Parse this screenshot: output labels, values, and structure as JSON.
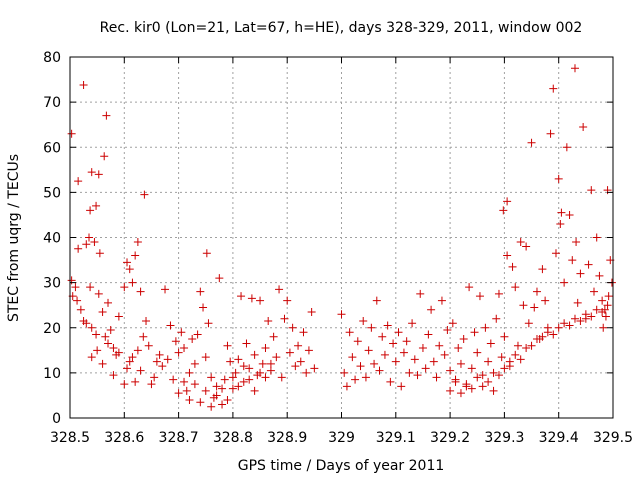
{
  "chart_data": {
    "type": "scatter",
    "title": "Rec. kir0 (Lon=21, Lat=67, h=HE), days 328-329, 2011, window 002",
    "xlabel": "GPS time / Days of year 2011",
    "ylabel": "STEC from uqrg / TECUs",
    "xlim": [
      328.5,
      329.5
    ],
    "ylim": [
      0,
      80
    ],
    "grid": true,
    "marker": "plus",
    "color": "#cc0000",
    "x_ticks": [
      {
        "value": 328.5,
        "label": "328.5"
      },
      {
        "value": 328.6,
        "label": "328.6"
      },
      {
        "value": 328.7,
        "label": "328.7"
      },
      {
        "value": 328.8,
        "label": "328.8"
      },
      {
        "value": 328.9,
        "label": "328.9"
      },
      {
        "value": 329.0,
        "label": "329"
      },
      {
        "value": 329.1,
        "label": "329.1"
      },
      {
        "value": 329.2,
        "label": "329.2"
      },
      {
        "value": 329.3,
        "label": "329.3"
      },
      {
        "value": 329.4,
        "label": "329.4"
      },
      {
        "value": 329.5,
        "label": "329.5"
      }
    ],
    "y_ticks": [
      {
        "value": 0,
        "label": "0"
      },
      {
        "value": 10,
        "label": "10"
      },
      {
        "value": 20,
        "label": "20"
      },
      {
        "value": 30,
        "label": "30"
      },
      {
        "value": 40,
        "label": "40"
      },
      {
        "value": 50,
        "label": "50"
      },
      {
        "value": 60,
        "label": "60"
      },
      {
        "value": 70,
        "label": "70"
      },
      {
        "value": 80,
        "label": "80"
      }
    ],
    "points": [
      [
        328.503,
        63
      ],
      [
        328.515,
        52.5
      ],
      [
        328.525,
        73.8
      ],
      [
        328.537,
        46
      ],
      [
        328.54,
        54.5
      ],
      [
        328.548,
        47
      ],
      [
        328.553,
        54
      ],
      [
        328.567,
        67
      ],
      [
        328.563,
        58
      ],
      [
        328.637,
        49.5
      ],
      [
        328.53,
        38.5
      ],
      [
        328.535,
        40
      ],
      [
        328.545,
        39
      ],
      [
        328.555,
        36.5
      ],
      [
        328.503,
        30.5
      ],
      [
        328.51,
        29
      ],
      [
        328.515,
        37.5
      ],
      [
        328.505,
        27
      ],
      [
        328.513,
        26
      ],
      [
        328.52,
        24
      ],
      [
        328.525,
        21.5
      ],
      [
        328.53,
        21
      ],
      [
        328.537,
        29
      ],
      [
        328.54,
        20
      ],
      [
        328.548,
        18.5
      ],
      [
        328.553,
        27.5
      ],
      [
        328.56,
        23.5
      ],
      [
        328.565,
        18
      ],
      [
        328.57,
        25.5
      ],
      [
        328.575,
        19.5
      ],
      [
        328.58,
        15.5
      ],
      [
        328.585,
        14
      ],
      [
        328.59,
        22.5
      ],
      [
        328.6,
        29
      ],
      [
        328.605,
        34.5
      ],
      [
        328.61,
        33
      ],
      [
        328.615,
        30
      ],
      [
        328.62,
        36
      ],
      [
        328.625,
        39
      ],
      [
        328.63,
        28
      ],
      [
        328.64,
        21.5
      ],
      [
        328.54,
        13.5
      ],
      [
        328.55,
        15
      ],
      [
        328.56,
        12
      ],
      [
        328.57,
        16.5
      ],
      [
        328.58,
        9.5
      ],
      [
        328.59,
        14.5
      ],
      [
        328.6,
        7.5
      ],
      [
        328.605,
        11
      ],
      [
        328.61,
        12.5
      ],
      [
        328.615,
        13.5
      ],
      [
        328.62,
        8
      ],
      [
        328.625,
        15
      ],
      [
        328.63,
        10.5
      ],
      [
        328.635,
        18
      ],
      [
        328.645,
        16
      ],
      [
        328.65,
        7.5
      ],
      [
        328.655,
        9
      ],
      [
        328.66,
        12.5
      ],
      [
        328.665,
        14
      ],
      [
        328.67,
        11.5
      ],
      [
        328.675,
        28.5
      ],
      [
        328.68,
        13
      ],
      [
        328.685,
        20.5
      ],
      [
        328.69,
        8.5
      ],
      [
        328.695,
        17
      ],
      [
        328.7,
        14.5
      ],
      [
        328.705,
        19
      ],
      [
        328.71,
        15.5
      ],
      [
        328.715,
        6
      ],
      [
        328.72,
        10
      ],
      [
        328.725,
        17.5
      ],
      [
        328.73,
        12
      ],
      [
        328.735,
        18.5
      ],
      [
        328.74,
        28
      ],
      [
        328.745,
        24.5
      ],
      [
        328.75,
        13.5
      ],
      [
        328.752,
        36.5
      ],
      [
        328.755,
        21
      ],
      [
        328.76,
        9
      ],
      [
        328.765,
        4.5
      ],
      [
        328.77,
        7
      ],
      [
        328.775,
        31
      ],
      [
        328.78,
        3
      ],
      [
        328.785,
        8.5
      ],
      [
        328.79,
        16
      ],
      [
        328.795,
        12.5
      ],
      [
        328.8,
        6.5
      ],
      [
        328.805,
        10
      ],
      [
        328.81,
        13
      ],
      [
        328.815,
        27
      ],
      [
        328.82,
        8
      ],
      [
        328.825,
        16.5
      ],
      [
        328.83,
        11
      ],
      [
        328.835,
        26.5
      ],
      [
        328.84,
        14
      ],
      [
        328.845,
        9.5
      ],
      [
        328.85,
        26
      ],
      [
        328.855,
        12
      ],
      [
        328.86,
        15.5
      ],
      [
        328.865,
        21.5
      ],
      [
        328.87,
        10.5
      ],
      [
        328.875,
        18
      ],
      [
        328.88,
        13.5
      ],
      [
        328.885,
        28.5
      ],
      [
        328.89,
        9
      ],
      [
        328.895,
        22
      ],
      [
        328.9,
        26
      ],
      [
        328.905,
        14.5
      ],
      [
        328.91,
        20
      ],
      [
        328.915,
        11.5
      ],
      [
        328.92,
        16
      ],
      [
        328.925,
        12.5
      ],
      [
        328.93,
        19
      ],
      [
        328.935,
        10
      ],
      [
        328.94,
        15
      ],
      [
        328.945,
        23.5
      ],
      [
        328.95,
        11
      ],
      [
        328.7,
        5.5
      ],
      [
        328.71,
        8
      ],
      [
        328.72,
        4
      ],
      [
        328.73,
        7.5
      ],
      [
        328.74,
        3.5
      ],
      [
        328.75,
        6
      ],
      [
        328.76,
        2.5
      ],
      [
        328.77,
        5
      ],
      [
        328.78,
        6.5
      ],
      [
        328.79,
        4
      ],
      [
        328.8,
        9
      ],
      [
        328.81,
        7
      ],
      [
        328.82,
        11.5
      ],
      [
        328.83,
        8.5
      ],
      [
        328.84,
        6
      ],
      [
        328.85,
        10
      ],
      [
        328.86,
        9
      ],
      [
        328.87,
        12
      ],
      [
        329.0,
        23
      ],
      [
        329.005,
        10
      ],
      [
        329.01,
        7
      ],
      [
        329.015,
        19
      ],
      [
        329.02,
        13.5
      ],
      [
        329.025,
        8.5
      ],
      [
        329.03,
        17
      ],
      [
        329.035,
        11.5
      ],
      [
        329.04,
        21.5
      ],
      [
        329.045,
        9
      ],
      [
        329.05,
        15
      ],
      [
        329.055,
        20
      ],
      [
        329.06,
        12
      ],
      [
        329.065,
        26
      ],
      [
        329.07,
        10.5
      ],
      [
        329.075,
        18
      ],
      [
        329.08,
        14
      ],
      [
        329.085,
        20.5
      ],
      [
        329.09,
        8
      ],
      [
        329.095,
        16.5
      ],
      [
        329.1,
        12.5
      ],
      [
        329.105,
        19
      ],
      [
        329.11,
        7
      ],
      [
        329.115,
        14.5
      ],
      [
        329.12,
        17
      ],
      [
        329.125,
        10
      ],
      [
        329.13,
        21
      ],
      [
        329.135,
        13
      ],
      [
        329.14,
        9.5
      ],
      [
        329.145,
        27.5
      ],
      [
        329.15,
        15.5
      ],
      [
        329.155,
        11
      ],
      [
        329.16,
        18.5
      ],
      [
        329.165,
        24
      ],
      [
        329.17,
        12.5
      ],
      [
        329.175,
        9
      ],
      [
        329.18,
        16
      ],
      [
        329.185,
        26
      ],
      [
        329.19,
        14
      ],
      [
        329.195,
        19.5
      ],
      [
        329.2,
        10.5
      ],
      [
        329.205,
        21
      ],
      [
        329.21,
        8
      ],
      [
        329.215,
        15.5
      ],
      [
        329.22,
        12
      ],
      [
        329.225,
        17.5
      ],
      [
        329.23,
        7
      ],
      [
        329.235,
        29
      ],
      [
        329.24,
        11
      ],
      [
        329.245,
        19
      ],
      [
        329.25,
        14.5
      ],
      [
        329.255,
        27
      ],
      [
        329.26,
        9.5
      ],
      [
        329.265,
        20
      ],
      [
        329.27,
        12.5
      ],
      [
        329.275,
        16.5
      ],
      [
        329.28,
        10
      ],
      [
        329.285,
        22
      ],
      [
        329.29,
        27.5
      ],
      [
        329.295,
        13.5
      ],
      [
        329.298,
        46
      ],
      [
        329.305,
        48
      ],
      [
        329.3,
        18
      ],
      [
        329.305,
        36
      ],
      [
        329.31,
        11.5
      ],
      [
        329.315,
        33.5
      ],
      [
        329.32,
        29
      ],
      [
        329.325,
        16
      ],
      [
        329.33,
        39
      ],
      [
        329.335,
        25
      ],
      [
        329.34,
        38
      ],
      [
        329.345,
        21
      ],
      [
        329.35,
        61
      ],
      [
        329.355,
        24.5
      ],
      [
        329.36,
        28
      ],
      [
        329.365,
        17.5
      ],
      [
        329.37,
        33
      ],
      [
        329.375,
        26
      ],
      [
        329.38,
        20
      ],
      [
        329.385,
        63
      ],
      [
        329.39,
        73
      ],
      [
        329.395,
        36.5
      ],
      [
        329.4,
        53
      ],
      [
        329.403,
        43
      ],
      [
        329.405,
        45.5
      ],
      [
        329.41,
        30
      ],
      [
        329.415,
        60
      ],
      [
        329.42,
        45
      ],
      [
        329.425,
        35
      ],
      [
        329.43,
        77.5
      ],
      [
        329.432,
        39
      ],
      [
        329.435,
        25.5
      ],
      [
        329.44,
        32
      ],
      [
        329.445,
        64.5
      ],
      [
        329.45,
        22
      ],
      [
        329.455,
        34
      ],
      [
        329.46,
        50.5
      ],
      [
        329.465,
        28
      ],
      [
        329.47,
        40
      ],
      [
        329.475,
        31.5
      ],
      [
        329.48,
        26
      ],
      [
        329.485,
        24
      ],
      [
        329.49,
        50.5
      ],
      [
        329.495,
        35
      ],
      [
        329.498,
        30
      ],
      [
        329.492,
        27
      ],
      [
        329.487,
        22.5
      ],
      [
        329.482,
        20
      ],
      [
        329.2,
        6
      ],
      [
        329.21,
        8.5
      ],
      [
        329.22,
        5.5
      ],
      [
        329.23,
        7.5
      ],
      [
        329.24,
        6.5
      ],
      [
        329.25,
        9
      ],
      [
        329.26,
        7
      ],
      [
        329.27,
        8
      ],
      [
        329.28,
        6
      ],
      [
        329.29,
        9.5
      ],
      [
        329.3,
        11
      ],
      [
        329.31,
        12.5
      ],
      [
        329.32,
        14
      ],
      [
        329.33,
        13
      ],
      [
        329.34,
        15.5
      ],
      [
        329.35,
        16
      ],
      [
        329.36,
        17.5
      ],
      [
        329.37,
        18
      ],
      [
        329.38,
        19
      ],
      [
        329.39,
        18.5
      ],
      [
        329.4,
        20
      ],
      [
        329.41,
        21
      ],
      [
        329.42,
        20.5
      ],
      [
        329.43,
        22
      ],
      [
        329.44,
        21.5
      ],
      [
        329.45,
        23
      ],
      [
        329.46,
        22.5
      ],
      [
        329.47,
        24
      ],
      [
        329.48,
        23.5
      ],
      [
        329.49,
        25
      ]
    ]
  }
}
